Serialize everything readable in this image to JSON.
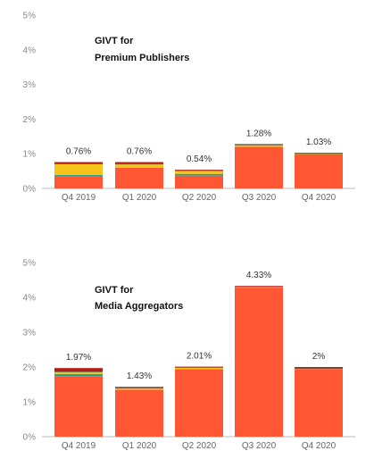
{
  "chart_data": [
    {
      "type": "bar",
      "stacked": true,
      "title_lines": [
        "GIVT for",
        "Premium Publishers"
      ],
      "categories": [
        "Q4 2019",
        "Q1 2020",
        "Q2 2020",
        "Q3 2020",
        "Q4 2020"
      ],
      "totals_labels": [
        "0.76%",
        "0.76%",
        "0.54%",
        "1.28%",
        "1.03%"
      ],
      "y_ticks": [
        "0%",
        "1%",
        "2%",
        "3%",
        "4%",
        "5%"
      ],
      "ylim": [
        0,
        5
      ],
      "grid": false,
      "series": [
        {
          "color": "#ff5733",
          "values": [
            0.34,
            0.6,
            0.37,
            1.2,
            0.99
          ]
        },
        {
          "color": "#2e9e8f",
          "values": [
            0.05,
            0.0,
            0.05,
            0.0,
            0.0
          ]
        },
        {
          "color": "#f5c518",
          "values": [
            0.31,
            0.09,
            0.08,
            0.04,
            0.01
          ]
        },
        {
          "color": "#5b6f2a",
          "values": [
            0.0,
            0.02,
            0.02,
            0.02,
            0.01
          ]
        },
        {
          "color": "#b71c1c",
          "values": [
            0.06,
            0.05,
            0.02,
            0.02,
            0.02
          ]
        }
      ]
    },
    {
      "type": "bar",
      "stacked": true,
      "title_lines": [
        "GIVT for",
        "Media Aggregators"
      ],
      "categories": [
        "Q4 2019",
        "Q1 2020",
        "Q2 2020",
        "Q3 2020",
        "Q4 2020"
      ],
      "totals_labels": [
        "1.97%",
        "1.43%",
        "2.01%",
        "4.33%",
        "2%"
      ],
      "y_ticks": [
        "0%",
        "1%",
        "2%",
        "3%",
        "4%",
        "5%"
      ],
      "ylim": [
        0,
        5
      ],
      "grid": false,
      "series": [
        {
          "color": "#ff5733",
          "values": [
            1.74,
            1.35,
            1.94,
            4.28,
            1.94
          ]
        },
        {
          "color": "#2e9e8f",
          "values": [
            0.06,
            0.0,
            0.0,
            0.0,
            0.0
          ]
        },
        {
          "color": "#f5c518",
          "values": [
            0.05,
            0.04,
            0.04,
            0.02,
            0.01
          ]
        },
        {
          "color": "#5b6f2a",
          "values": [
            0.02,
            0.01,
            0.01,
            0.01,
            0.01
          ]
        },
        {
          "color": "#b71c1c",
          "values": [
            0.1,
            0.03,
            0.02,
            0.02,
            0.04
          ]
        }
      ]
    }
  ]
}
